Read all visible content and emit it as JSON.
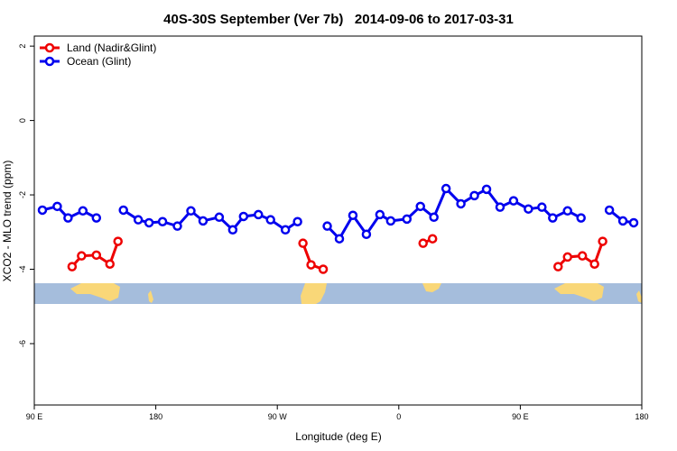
{
  "chart_data": {
    "type": "line",
    "title": "40S-30S September (Ver 7b)   2014-09-06 to 2017-03-31",
    "x_label": "Longitude (deg E)",
    "y_label": "XCO2 - MLO trend (ppm)",
    "xlim": [
      90,
      540
    ],
    "ylim": [
      -7.65,
      2.27
    ],
    "xticks": [
      {
        "value": 90,
        "label": "90 E"
      },
      {
        "value": 180,
        "label": "180"
      },
      {
        "value": 270,
        "label": "90 W"
      },
      {
        "value": 360,
        "label": "0"
      },
      {
        "value": 450,
        "label": "90 E"
      },
      {
        "value": 540,
        "label": "180"
      }
    ],
    "yticks": [
      2,
      0,
      -2,
      -4,
      -6
    ],
    "legend": "top-left",
    "series": [
      {
        "name": "Land (Nadir&Glint)",
        "color": "#ee0000",
        "x": [
          118,
          125,
          136,
          146,
          152,
          null,
          289,
          295,
          304,
          null,
          378,
          385,
          null,
          478,
          485,
          496,
          505,
          511
        ],
        "values": [
          -3.93,
          -3.64,
          -3.62,
          -3.86,
          -3.25,
          null,
          -3.3,
          -3.88,
          -4.0,
          null,
          -3.3,
          -3.18,
          null,
          -3.93,
          -3.67,
          -3.64,
          -3.86,
          -3.25
        ]
      },
      {
        "name": "Ocean (Glint)",
        "color": "#0000ee",
        "x": [
          96,
          107,
          115,
          126,
          136,
          null,
          156,
          167,
          175,
          185,
          196,
          206,
          215,
          227,
          237,
          245,
          256,
          265,
          276,
          285,
          null,
          307,
          316,
          326,
          336,
          346,
          354,
          366,
          376,
          386,
          395,
          406,
          416,
          425,
          435,
          445,
          456,
          466,
          474,
          485,
          495,
          null,
          516,
          526,
          534
        ],
        "values": [
          -2.41,
          -2.31,
          -2.62,
          -2.43,
          -2.62,
          null,
          -2.41,
          -2.67,
          -2.75,
          -2.72,
          -2.84,
          -2.43,
          -2.7,
          -2.6,
          -2.94,
          -2.58,
          -2.53,
          -2.67,
          -2.94,
          -2.72,
          null,
          -2.84,
          -3.18,
          -2.55,
          -3.06,
          -2.53,
          -2.7,
          -2.65,
          -2.31,
          -2.6,
          -1.83,
          -2.24,
          -2.02,
          -1.85,
          -2.33,
          -2.16,
          -2.38,
          -2.33,
          -2.62,
          -2.43,
          -2.62,
          null,
          -2.41,
          -2.7,
          -2.75
        ]
      }
    ]
  }
}
